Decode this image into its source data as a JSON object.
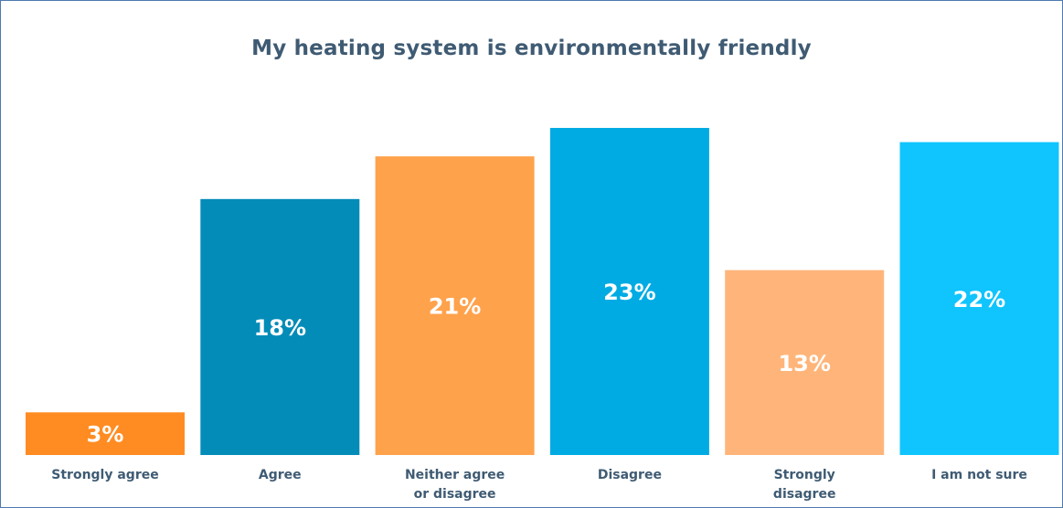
{
  "chart_data": {
    "type": "bar",
    "title": "My heating system is environmentally friendly",
    "categories": [
      [
        "Strongly agree"
      ],
      [
        "Agree"
      ],
      [
        "Neither agree",
        "or disagree"
      ],
      [
        "Disagree"
      ],
      [
        "Strongly",
        "disagree"
      ],
      [
        "I am not sure"
      ]
    ],
    "values": [
      3,
      18,
      21,
      23,
      13,
      22
    ],
    "value_labels": [
      "3%",
      "18%",
      "21%",
      "23%",
      "13%",
      "22%"
    ],
    "colors": [
      "#ff8c22",
      "#048cb8",
      "#ffa24c",
      "#00abe3",
      "#ffb57a",
      "#10c4fd"
    ],
    "ylim": [
      0,
      23
    ],
    "grid": false,
    "legend": "none"
  }
}
